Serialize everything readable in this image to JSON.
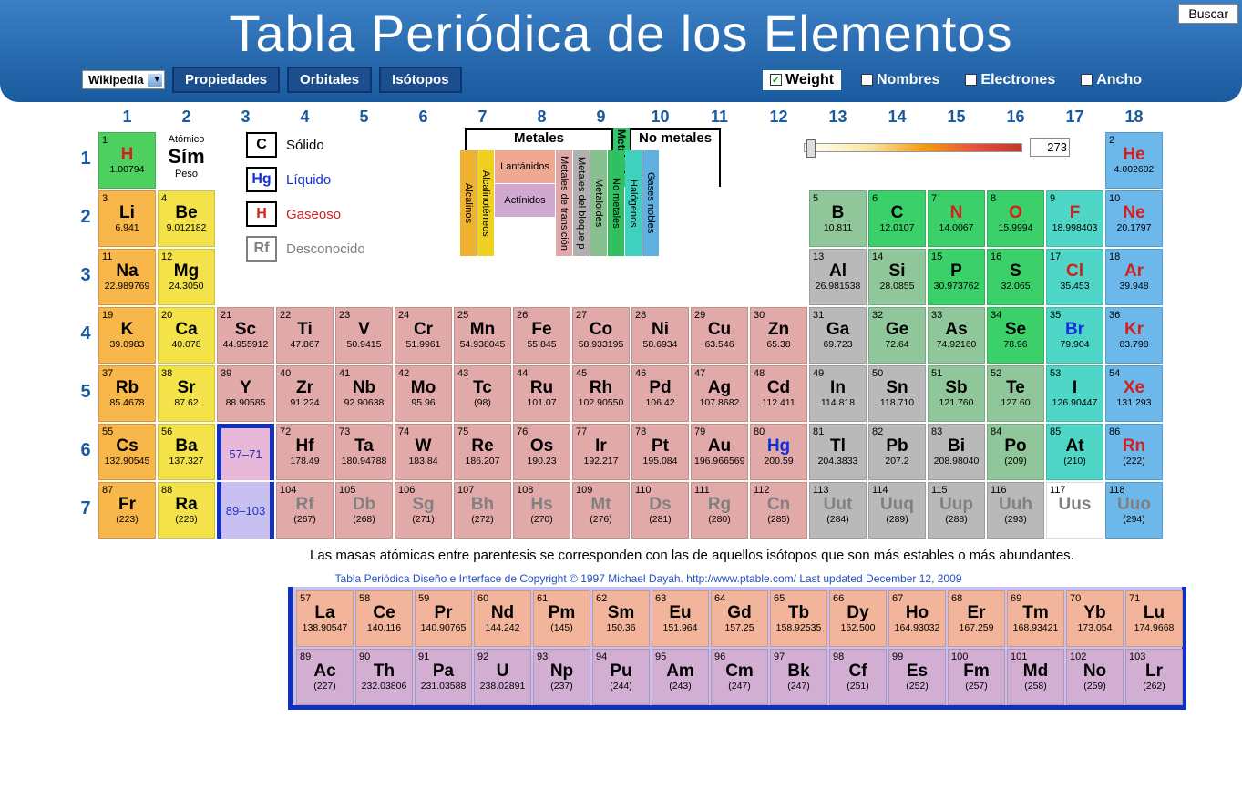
{
  "title": "Tabla Periódica de los Elementos",
  "search": "Buscar",
  "source_select": "Wikipedia",
  "nav": {
    "prop": "Propiedades",
    "orb": "Orbitales",
    "iso": "Isótopos"
  },
  "checks": {
    "weight": "Weight",
    "names": "Nombres",
    "elec": "Electrones",
    "wide": "Ancho"
  },
  "key": {
    "atomic": "Atómico",
    "sym": "Sím",
    "weight": "Peso"
  },
  "states": {
    "solid": {
      "sym": "C",
      "label": "Sólido",
      "color": "#000"
    },
    "liquid": {
      "sym": "Hg",
      "label": "Líquido",
      "color": "#1030e0"
    },
    "gas": {
      "sym": "H",
      "label": "Gaseoso",
      "color": "#d02020"
    },
    "unknown": {
      "sym": "Rf",
      "label": "Desconocido",
      "color": "#808080"
    }
  },
  "cat_header": {
    "metals": "Metales",
    "metalloids": "Metaloides",
    "nonmetals": "No metales"
  },
  "categories": [
    {
      "label": "Alcalinos",
      "color": "#f0b030"
    },
    {
      "label": "Alcalinotérreos",
      "color": "#f0d020"
    },
    {
      "label": "Lantánidos",
      "color": "#f0a890"
    },
    {
      "label": "Actínidos",
      "color": "#d0a8d0"
    },
    {
      "label": "Metales de transición",
      "color": "#e0a8a8"
    },
    {
      "label": "Metales del bloque p",
      "color": "#b0b0b0"
    },
    {
      "label": "Metaloides",
      "color": "#88c090"
    },
    {
      "label": "No metales",
      "color": "#30c060"
    },
    {
      "label": "Halógenos",
      "color": "#40d0c0"
    },
    {
      "label": "Gases nobles",
      "color": "#60b0e0"
    }
  ],
  "slider": {
    "value": "273"
  },
  "note": "Las masas atómicas entre parentesis se corresponden con las de aquellos isótopos que son más estables o más abundantes.",
  "credit": "Tabla Periódica Diseño e Interface de Copyright © 1997 Michael Dayah. http://www.ptable.com/ Last updated December 12, 2009",
  "lanth_range": "57–71",
  "act_range": "89–103",
  "colors": {
    "alkali": "#f7b74a",
    "alkaline": "#f4e24b",
    "lanth": "#f2b49a",
    "act": "#d3aed3",
    "trans": "#e2a9a9",
    "post": "#b9b9b9",
    "metalloid": "#8fc79a",
    "nonmetal": "#3bd06a",
    "halogen": "#4fd6c6",
    "noble": "#6cb8ea",
    "hydrogen": "#4ed060"
  },
  "symcolor": {
    "gas": "#d02020",
    "liquid": "#1030e0",
    "solid": "#000",
    "unknown": "#808080"
  },
  "elements": {
    "1": {
      "s": "H",
      "w": "1.00794",
      "c": "hydrogen",
      "st": "gas"
    },
    "2": {
      "s": "He",
      "w": "4.002602",
      "c": "noble",
      "st": "gas"
    },
    "3": {
      "s": "Li",
      "w": "6.941",
      "c": "alkali",
      "st": "solid"
    },
    "4": {
      "s": "Be",
      "w": "9.012182",
      "c": "alkaline",
      "st": "solid"
    },
    "5": {
      "s": "B",
      "w": "10.811",
      "c": "metalloid",
      "st": "solid"
    },
    "6": {
      "s": "C",
      "w": "12.0107",
      "c": "nonmetal",
      "st": "solid"
    },
    "7": {
      "s": "N",
      "w": "14.0067",
      "c": "nonmetal",
      "st": "gas"
    },
    "8": {
      "s": "O",
      "w": "15.9994",
      "c": "nonmetal",
      "st": "gas"
    },
    "9": {
      "s": "F",
      "w": "18.998403",
      "c": "halogen",
      "st": "gas"
    },
    "10": {
      "s": "Ne",
      "w": "20.1797",
      "c": "noble",
      "st": "gas"
    },
    "11": {
      "s": "Na",
      "w": "22.989769",
      "c": "alkali",
      "st": "solid"
    },
    "12": {
      "s": "Mg",
      "w": "24.3050",
      "c": "alkaline",
      "st": "solid"
    },
    "13": {
      "s": "Al",
      "w": "26.981538",
      "c": "post",
      "st": "solid"
    },
    "14": {
      "s": "Si",
      "w": "28.0855",
      "c": "metalloid",
      "st": "solid"
    },
    "15": {
      "s": "P",
      "w": "30.973762",
      "c": "nonmetal",
      "st": "solid"
    },
    "16": {
      "s": "S",
      "w": "32.065",
      "c": "nonmetal",
      "st": "solid"
    },
    "17": {
      "s": "Cl",
      "w": "35.453",
      "c": "halogen",
      "st": "gas"
    },
    "18": {
      "s": "Ar",
      "w": "39.948",
      "c": "noble",
      "st": "gas"
    },
    "19": {
      "s": "K",
      "w": "39.0983",
      "c": "alkali",
      "st": "solid"
    },
    "20": {
      "s": "Ca",
      "w": "40.078",
      "c": "alkaline",
      "st": "solid"
    },
    "21": {
      "s": "Sc",
      "w": "44.955912",
      "c": "trans",
      "st": "solid"
    },
    "22": {
      "s": "Ti",
      "w": "47.867",
      "c": "trans",
      "st": "solid"
    },
    "23": {
      "s": "V",
      "w": "50.9415",
      "c": "trans",
      "st": "solid"
    },
    "24": {
      "s": "Cr",
      "w": "51.9961",
      "c": "trans",
      "st": "solid"
    },
    "25": {
      "s": "Mn",
      "w": "54.938045",
      "c": "trans",
      "st": "solid"
    },
    "26": {
      "s": "Fe",
      "w": "55.845",
      "c": "trans",
      "st": "solid"
    },
    "27": {
      "s": "Co",
      "w": "58.933195",
      "c": "trans",
      "st": "solid"
    },
    "28": {
      "s": "Ni",
      "w": "58.6934",
      "c": "trans",
      "st": "solid"
    },
    "29": {
      "s": "Cu",
      "w": "63.546",
      "c": "trans",
      "st": "solid"
    },
    "30": {
      "s": "Zn",
      "w": "65.38",
      "c": "trans",
      "st": "solid"
    },
    "31": {
      "s": "Ga",
      "w": "69.723",
      "c": "post",
      "st": "solid"
    },
    "32": {
      "s": "Ge",
      "w": "72.64",
      "c": "metalloid",
      "st": "solid"
    },
    "33": {
      "s": "As",
      "w": "74.92160",
      "c": "metalloid",
      "st": "solid"
    },
    "34": {
      "s": "Se",
      "w": "78.96",
      "c": "nonmetal",
      "st": "solid"
    },
    "35": {
      "s": "Br",
      "w": "79.904",
      "c": "halogen",
      "st": "liquid"
    },
    "36": {
      "s": "Kr",
      "w": "83.798",
      "c": "noble",
      "st": "gas"
    },
    "37": {
      "s": "Rb",
      "w": "85.4678",
      "c": "alkali",
      "st": "solid"
    },
    "38": {
      "s": "Sr",
      "w": "87.62",
      "c": "alkaline",
      "st": "solid"
    },
    "39": {
      "s": "Y",
      "w": "88.90585",
      "c": "trans",
      "st": "solid"
    },
    "40": {
      "s": "Zr",
      "w": "91.224",
      "c": "trans",
      "st": "solid"
    },
    "41": {
      "s": "Nb",
      "w": "92.90638",
      "c": "trans",
      "st": "solid"
    },
    "42": {
      "s": "Mo",
      "w": "95.96",
      "c": "trans",
      "st": "solid"
    },
    "43": {
      "s": "Tc",
      "w": "(98)",
      "c": "trans",
      "st": "solid"
    },
    "44": {
      "s": "Ru",
      "w": "101.07",
      "c": "trans",
      "st": "solid"
    },
    "45": {
      "s": "Rh",
      "w": "102.90550",
      "c": "trans",
      "st": "solid"
    },
    "46": {
      "s": "Pd",
      "w": "106.42",
      "c": "trans",
      "st": "solid"
    },
    "47": {
      "s": "Ag",
      "w": "107.8682",
      "c": "trans",
      "st": "solid"
    },
    "48": {
      "s": "Cd",
      "w": "112.411",
      "c": "trans",
      "st": "solid"
    },
    "49": {
      "s": "In",
      "w": "114.818",
      "c": "post",
      "st": "solid"
    },
    "50": {
      "s": "Sn",
      "w": "118.710",
      "c": "post",
      "st": "solid"
    },
    "51": {
      "s": "Sb",
      "w": "121.760",
      "c": "metalloid",
      "st": "solid"
    },
    "52": {
      "s": "Te",
      "w": "127.60",
      "c": "metalloid",
      "st": "solid"
    },
    "53": {
      "s": "I",
      "w": "126.90447",
      "c": "halogen",
      "st": "solid"
    },
    "54": {
      "s": "Xe",
      "w": "131.293",
      "c": "noble",
      "st": "gas"
    },
    "55": {
      "s": "Cs",
      "w": "132.90545",
      "c": "alkali",
      "st": "solid"
    },
    "56": {
      "s": "Ba",
      "w": "137.327",
      "c": "alkaline",
      "st": "solid"
    },
    "72": {
      "s": "Hf",
      "w": "178.49",
      "c": "trans",
      "st": "solid"
    },
    "73": {
      "s": "Ta",
      "w": "180.94788",
      "c": "trans",
      "st": "solid"
    },
    "74": {
      "s": "W",
      "w": "183.84",
      "c": "trans",
      "st": "solid"
    },
    "75": {
      "s": "Re",
      "w": "186.207",
      "c": "trans",
      "st": "solid"
    },
    "76": {
      "s": "Os",
      "w": "190.23",
      "c": "trans",
      "st": "solid"
    },
    "77": {
      "s": "Ir",
      "w": "192.217",
      "c": "trans",
      "st": "solid"
    },
    "78": {
      "s": "Pt",
      "w": "195.084",
      "c": "trans",
      "st": "solid"
    },
    "79": {
      "s": "Au",
      "w": "196.966569",
      "c": "trans",
      "st": "solid"
    },
    "80": {
      "s": "Hg",
      "w": "200.59",
      "c": "trans",
      "st": "liquid"
    },
    "81": {
      "s": "Tl",
      "w": "204.3833",
      "c": "post",
      "st": "solid"
    },
    "82": {
      "s": "Pb",
      "w": "207.2",
      "c": "post",
      "st": "solid"
    },
    "83": {
      "s": "Bi",
      "w": "208.98040",
      "c": "post",
      "st": "solid"
    },
    "84": {
      "s": "Po",
      "w": "(209)",
      "c": "metalloid",
      "st": "solid"
    },
    "85": {
      "s": "At",
      "w": "(210)",
      "c": "halogen",
      "st": "solid"
    },
    "86": {
      "s": "Rn",
      "w": "(222)",
      "c": "noble",
      "st": "gas"
    },
    "87": {
      "s": "Fr",
      "w": "(223)",
      "c": "alkali",
      "st": "solid"
    },
    "88": {
      "s": "Ra",
      "w": "(226)",
      "c": "alkaline",
      "st": "solid"
    },
    "104": {
      "s": "Rf",
      "w": "(267)",
      "c": "trans",
      "st": "unknown"
    },
    "105": {
      "s": "Db",
      "w": "(268)",
      "c": "trans",
      "st": "unknown"
    },
    "106": {
      "s": "Sg",
      "w": "(271)",
      "c": "trans",
      "st": "unknown"
    },
    "107": {
      "s": "Bh",
      "w": "(272)",
      "c": "trans",
      "st": "unknown"
    },
    "108": {
      "s": "Hs",
      "w": "(270)",
      "c": "trans",
      "st": "unknown"
    },
    "109": {
      "s": "Mt",
      "w": "(276)",
      "c": "trans",
      "st": "unknown"
    },
    "110": {
      "s": "Ds",
      "w": "(281)",
      "c": "trans",
      "st": "unknown"
    },
    "111": {
      "s": "Rg",
      "w": "(280)",
      "c": "trans",
      "st": "unknown"
    },
    "112": {
      "s": "Cn",
      "w": "(285)",
      "c": "trans",
      "st": "unknown"
    },
    "113": {
      "s": "Uut",
      "w": "(284)",
      "c": "post",
      "st": "unknown"
    },
    "114": {
      "s": "Uuq",
      "w": "(289)",
      "c": "post",
      "st": "unknown"
    },
    "115": {
      "s": "Uup",
      "w": "(288)",
      "c": "post",
      "st": "unknown"
    },
    "116": {
      "s": "Uuh",
      "w": "(293)",
      "c": "post",
      "st": "unknown"
    },
    "117": {
      "s": "Uus",
      "w": "",
      "c": "halogen_u",
      "st": "unknown"
    },
    "118": {
      "s": "Uuo",
      "w": "(294)",
      "c": "noble",
      "st": "unknown"
    },
    "57": {
      "s": "La",
      "w": "138.90547",
      "c": "lanth",
      "st": "solid"
    },
    "58": {
      "s": "Ce",
      "w": "140.116",
      "c": "lanth",
      "st": "solid"
    },
    "59": {
      "s": "Pr",
      "w": "140.90765",
      "c": "lanth",
      "st": "solid"
    },
    "60": {
      "s": "Nd",
      "w": "144.242",
      "c": "lanth",
      "st": "solid"
    },
    "61": {
      "s": "Pm",
      "w": "(145)",
      "c": "lanth",
      "st": "solid"
    },
    "62": {
      "s": "Sm",
      "w": "150.36",
      "c": "lanth",
      "st": "solid"
    },
    "63": {
      "s": "Eu",
      "w": "151.964",
      "c": "lanth",
      "st": "solid"
    },
    "64": {
      "s": "Gd",
      "w": "157.25",
      "c": "lanth",
      "st": "solid"
    },
    "65": {
      "s": "Tb",
      "w": "158.92535",
      "c": "lanth",
      "st": "solid"
    },
    "66": {
      "s": "Dy",
      "w": "162.500",
      "c": "lanth",
      "st": "solid"
    },
    "67": {
      "s": "Ho",
      "w": "164.93032",
      "c": "lanth",
      "st": "solid"
    },
    "68": {
      "s": "Er",
      "w": "167.259",
      "c": "lanth",
      "st": "solid"
    },
    "69": {
      "s": "Tm",
      "w": "168.93421",
      "c": "lanth",
      "st": "solid"
    },
    "70": {
      "s": "Yb",
      "w": "173.054",
      "c": "lanth",
      "st": "solid"
    },
    "71": {
      "s": "Lu",
      "w": "174.9668",
      "c": "lanth",
      "st": "solid"
    },
    "89": {
      "s": "Ac",
      "w": "(227)",
      "c": "act",
      "st": "solid"
    },
    "90": {
      "s": "Th",
      "w": "232.03806",
      "c": "act",
      "st": "solid"
    },
    "91": {
      "s": "Pa",
      "w": "231.03588",
      "c": "act",
      "st": "solid"
    },
    "92": {
      "s": "U",
      "w": "238.02891",
      "c": "act",
      "st": "solid"
    },
    "93": {
      "s": "Np",
      "w": "(237)",
      "c": "act",
      "st": "solid"
    },
    "94": {
      "s": "Pu",
      "w": "(244)",
      "c": "act",
      "st": "solid"
    },
    "95": {
      "s": "Am",
      "w": "(243)",
      "c": "act",
      "st": "solid"
    },
    "96": {
      "s": "Cm",
      "w": "(247)",
      "c": "act",
      "st": "solid"
    },
    "97": {
      "s": "Bk",
      "w": "(247)",
      "c": "act",
      "st": "solid"
    },
    "98": {
      "s": "Cf",
      "w": "(251)",
      "c": "act",
      "st": "solid"
    },
    "99": {
      "s": "Es",
      "w": "(252)",
      "c": "act",
      "st": "solid"
    },
    "100": {
      "s": "Fm",
      "w": "(257)",
      "c": "act",
      "st": "solid"
    },
    "101": {
      "s": "Md",
      "w": "(258)",
      "c": "act",
      "st": "solid"
    },
    "102": {
      "s": "No",
      "w": "(259)",
      "c": "act",
      "st": "solid"
    },
    "103": {
      "s": "Lr",
      "w": "(262)",
      "c": "act",
      "st": "solid"
    }
  },
  "layout": {
    "rows": [
      [
        1,
        "K",
        null,
        null,
        null,
        null,
        null,
        null,
        null,
        null,
        null,
        null,
        null,
        null,
        null,
        null,
        null,
        2
      ],
      [
        3,
        4,
        null,
        null,
        null,
        null,
        null,
        null,
        null,
        null,
        null,
        null,
        5,
        6,
        7,
        8,
        9,
        10
      ],
      [
        11,
        12,
        null,
        null,
        null,
        null,
        null,
        null,
        null,
        null,
        null,
        null,
        13,
        14,
        15,
        16,
        17,
        18
      ],
      [
        19,
        20,
        21,
        22,
        23,
        24,
        25,
        26,
        27,
        28,
        29,
        30,
        31,
        32,
        33,
        34,
        35,
        36
      ],
      [
        37,
        38,
        39,
        40,
        41,
        42,
        43,
        44,
        45,
        46,
        47,
        48,
        49,
        50,
        51,
        52,
        53,
        54
      ],
      [
        55,
        56,
        "L",
        72,
        73,
        74,
        75,
        76,
        77,
        78,
        79,
        80,
        81,
        82,
        83,
        84,
        85,
        86
      ],
      [
        87,
        88,
        "A",
        104,
        105,
        106,
        107,
        108,
        109,
        110,
        111,
        112,
        113,
        114,
        115,
        116,
        117,
        118
      ]
    ],
    "la": [
      57,
      58,
      59,
      60,
      61,
      62,
      63,
      64,
      65,
      66,
      67,
      68,
      69,
      70,
      71
    ],
    "ac": [
      89,
      90,
      91,
      92,
      93,
      94,
      95,
      96,
      97,
      98,
      99,
      100,
      101,
      102,
      103
    ]
  }
}
